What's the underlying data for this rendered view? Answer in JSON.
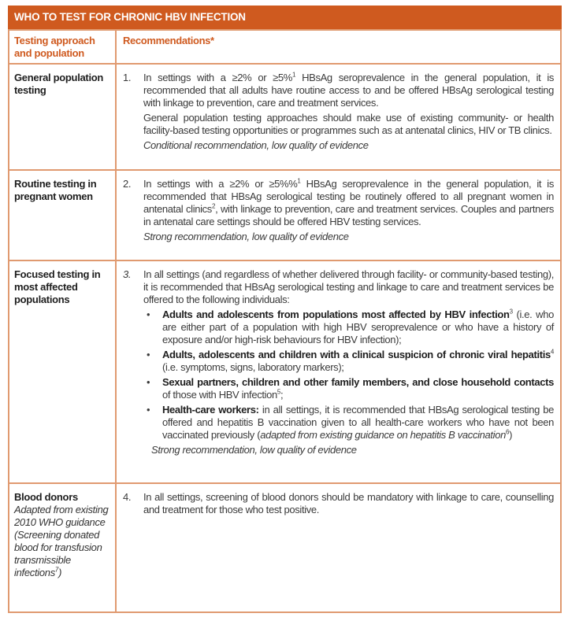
{
  "title": "WHO TO TEST FOR CHRONIC HBV INFECTION",
  "columns": {
    "population": "Testing approach and population",
    "recommendations": "Recommendations*"
  },
  "colors": {
    "accent": "#cf5a1f",
    "border": "#e09a70"
  },
  "rows": [
    {
      "population": "General population testing",
      "number": "1.",
      "text": "In settings with a ≥2% or ≥5%",
      "sup1": "1",
      "text_b": " HBsAg seroprevalence in the general population, it is recommended that all adults have routine access to and be offered HBsAg serological testing with linkage to prevention, care and treatment services.",
      "note": "General population testing approaches should make use of existing community- or health facility-based testing opportunities or programmes such as at antenatal clinics, HIV or TB clinics.",
      "evidence": "Conditional recommendation, low quality of evidence"
    },
    {
      "population": "Routine testing in pregnant women",
      "number": "2.",
      "text": "In settings with a ≥2% or ≥5%%",
      "sup1": "1",
      "text_b": " HBsAg seroprevalence in the general population, it is recommended that HBsAg serological testing be routinely offered to all pregnant women in antenatal clinics",
      "sup2": "2",
      "text_c": ", with linkage to prevention, care and treatment services. Couples and partners in antenatal care settings should be offered HBV testing services.",
      "evidence": "Strong recommendation, low quality of evidence"
    },
    {
      "population": "Focused testing in most affected populations",
      "number": "3.",
      "text": "In all settings (and regardless of whether delivered through facility- or community-based testing), it is recommended that HBsAg serological testing and linkage to care and treatment services be offered to the following individuals:",
      "bullets": [
        {
          "bold": "Adults and adolescents from populations most affected by HBV infection",
          "sup": "3",
          "rest": " (i.e. who are either part of a population with high HBV seroprevalence or who have a history of exposure and/or high-risk behaviours for HBV infection);"
        },
        {
          "bold": "Adults, adolescents and children with a clinical suspicion of chronic viral hepatitis",
          "sup": "4",
          "rest": " (i.e. symptoms, signs, laboratory markers);"
        },
        {
          "bold": "Sexual partners, children and other family members, and close household contacts",
          "rest": " of those with HBV infection",
          "sup": "5",
          "rest2": ";"
        },
        {
          "bold": "Health-care workers:",
          "rest": " in all settings, it is recommended that HBsAg serological testing be offered and hepatitis B vaccination given to all health-care workers who have not been vaccinated previously (",
          "italic": "adapted from existing guidance on hepatitis B vaccination",
          "sup": "6",
          "rest2": ")"
        }
      ],
      "evidence": "Strong recommendation, low quality of evidence"
    },
    {
      "population": "Blood donors",
      "population_note": "Adapted from existing 2010 WHO guidance (Screening donated blood for transfusion transmissible infections",
      "population_note_sup": "7",
      "population_note_end": ")",
      "number": "4.",
      "text": "In all settings, screening of blood donors should be mandatory with linkage to care, counselling and treatment for those who test positive."
    }
  ]
}
